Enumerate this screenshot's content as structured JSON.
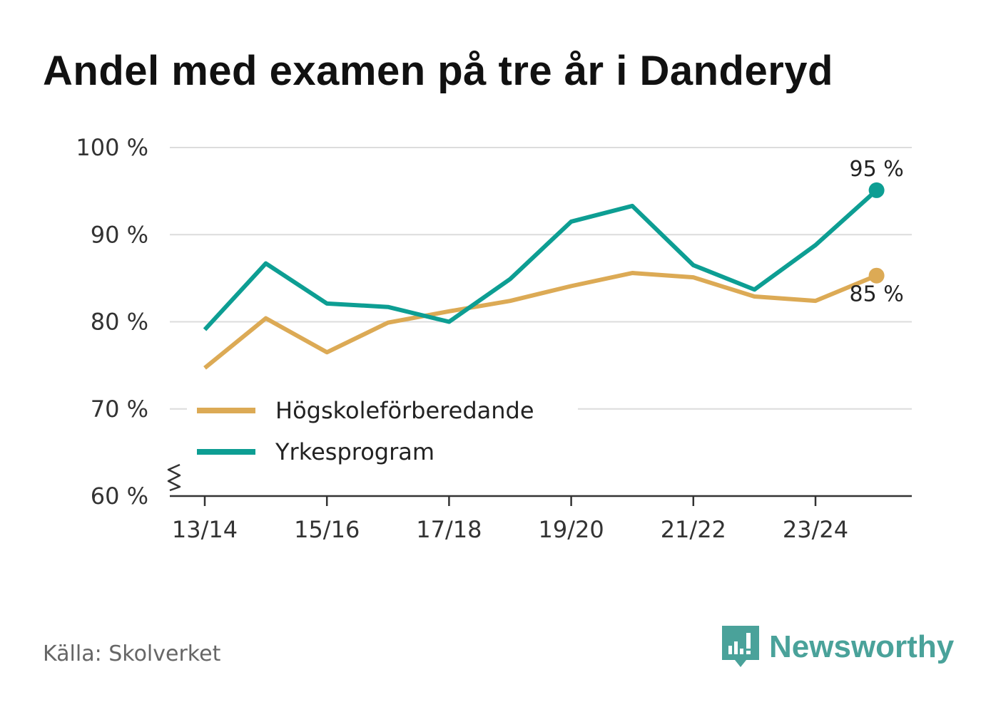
{
  "title": "Andel med examen på tre år i Danderyd",
  "source": "Källa: Skolverket",
  "brand": {
    "name": "Newsworthy",
    "icon": "newsworthy-logo-icon",
    "color": "#4aa29a"
  },
  "chart_data": {
    "type": "line",
    "title": "Andel med examen på tre år i Danderyd",
    "xlabel": "",
    "ylabel": "",
    "categories": [
      "13/14",
      "14/15",
      "15/16",
      "16/17",
      "17/18",
      "18/19",
      "19/20",
      "20/21",
      "21/22",
      "22/23",
      "23/24",
      "24/25"
    ],
    "x_tick_labels": [
      "13/14",
      "15/16",
      "17/18",
      "19/20",
      "21/22",
      "23/24"
    ],
    "ylim": [
      60,
      100
    ],
    "y_ticks": [
      60,
      70,
      80,
      90,
      100
    ],
    "y_tick_labels": [
      "60 %",
      "70 %",
      "80 %",
      "90 %",
      "100 %"
    ],
    "y_axis_break": true,
    "grid": true,
    "legend_position": "bottom-left",
    "series": [
      {
        "name": "Högskoleförberedande",
        "color": "#dcaa55",
        "values": [
          74.7,
          80.4,
          76.5,
          79.9,
          81.2,
          82.4,
          84.1,
          85.6,
          85.1,
          82.9,
          82.4,
          85.3
        ],
        "end_label": "85 %"
      },
      {
        "name": "Yrkesprogram",
        "color": "#0d9e93",
        "values": [
          79.1,
          86.7,
          82.1,
          81.7,
          80.0,
          84.9,
          91.5,
          93.3,
          86.5,
          83.7,
          88.8,
          95.1
        ],
        "end_label": "95 %"
      }
    ]
  }
}
